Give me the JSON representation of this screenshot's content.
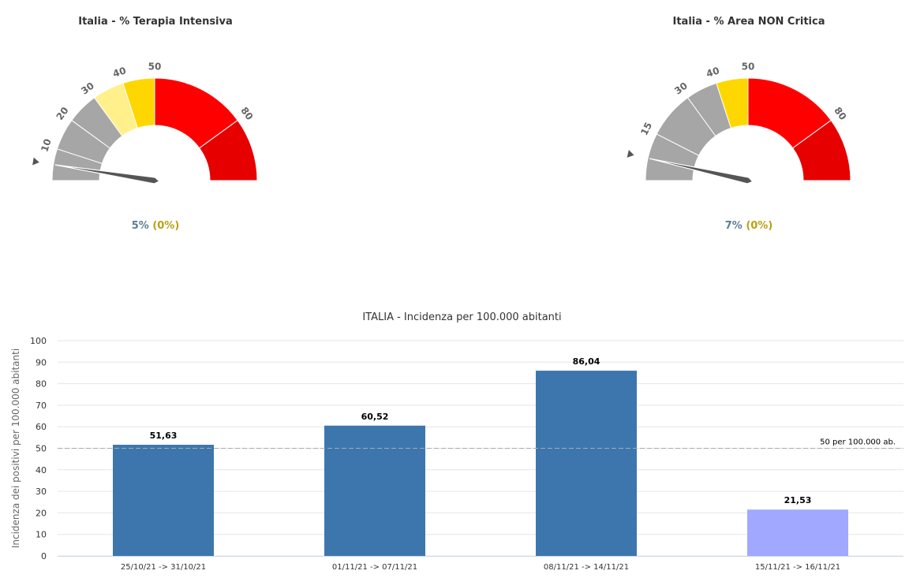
{
  "chart_data": [
    {
      "type": "gauge",
      "title": "Italia - % Terapia Intensiva",
      "value": 5,
      "value_label": "5%",
      "delta_label": "(0%)",
      "range": [
        0,
        100
      ],
      "tick_labels": [
        {
          "label": "10",
          "value": 10
        },
        {
          "label": "20",
          "value": 20
        },
        {
          "label": "30",
          "value": 30
        },
        {
          "label": "40",
          "value": 40
        },
        {
          "label": "50",
          "value": 50
        },
        {
          "label": "80",
          "value": 80
        }
      ],
      "bands": [
        {
          "from": 0,
          "to": 10,
          "color": "#a6a6a6"
        },
        {
          "from": 10,
          "to": 20,
          "color": "#a6a6a6"
        },
        {
          "from": 20,
          "to": 30,
          "color": "#a6a6a6"
        },
        {
          "from": 30,
          "to": 40,
          "color": "#fff08c"
        },
        {
          "from": 40,
          "to": 50,
          "color": "#ffd700"
        },
        {
          "from": 50,
          "to": 80,
          "color": "#ff0000"
        },
        {
          "from": 80,
          "to": 100,
          "color": "#e60000"
        }
      ]
    },
    {
      "type": "gauge",
      "title": "Italia - % Area NON Critica",
      "value": 7,
      "value_label": "7%",
      "delta_label": "(0%)",
      "range": [
        0,
        100
      ],
      "tick_labels": [
        {
          "label": "15",
          "value": 15
        },
        {
          "label": "30",
          "value": 30
        },
        {
          "label": "40",
          "value": 40
        },
        {
          "label": "50",
          "value": 50
        },
        {
          "label": "80",
          "value": 80
        }
      ],
      "bands": [
        {
          "from": 0,
          "to": 15,
          "color": "#a6a6a6"
        },
        {
          "from": 15,
          "to": 30,
          "color": "#a6a6a6"
        },
        {
          "from": 30,
          "to": 40,
          "color": "#a6a6a6"
        },
        {
          "from": 40,
          "to": 50,
          "color": "#ffd700"
        },
        {
          "from": 50,
          "to": 80,
          "color": "#ff0000"
        },
        {
          "from": 80,
          "to": 100,
          "color": "#e60000"
        }
      ]
    },
    {
      "type": "bar",
      "title": "ITALIA - Incidenza per 100.000 abitanti",
      "ylabel": "Incidenza dei positivi per 100.000 abitanti",
      "ylim": [
        0,
        100
      ],
      "yticks": [
        0,
        10,
        20,
        30,
        40,
        50,
        60,
        70,
        80,
        90,
        100
      ],
      "grid": true,
      "categories": [
        "25/10/21 -> 31/10/21",
        "01/11/21 -> 07/11/21",
        "08/11/21 -> 14/11/21",
        "15/11/21 -> 16/11/21"
      ],
      "values": [
        51.63,
        60.52,
        86.04,
        21.53
      ],
      "value_labels": [
        "51,63",
        "60,52",
        "86,04",
        "21,53"
      ],
      "colors": [
        "#3d76ad",
        "#3d76ad",
        "#3d76ad",
        "#a0a8ff"
      ],
      "reference_line": {
        "value": 50,
        "label": "50 per 100.000 ab."
      }
    }
  ]
}
